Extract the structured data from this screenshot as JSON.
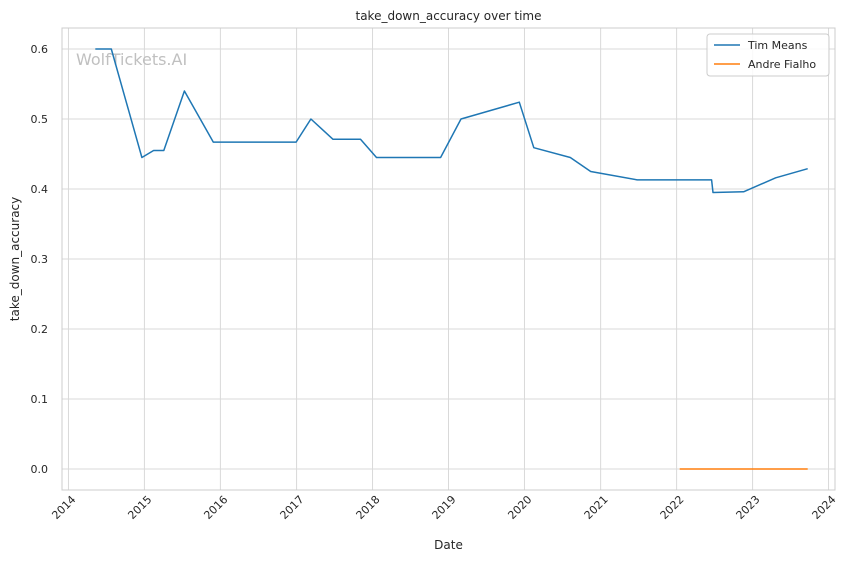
{
  "chart_data": {
    "type": "line",
    "title": "take_down_accuracy over time",
    "xlabel": "Date",
    "ylabel": "take_down_accuracy",
    "watermark": "WolfTickets.AI",
    "xlim": [
      "2013-12-01",
      "2024-02-01"
    ],
    "ylim": [
      -0.03,
      0.63
    ],
    "x_ticks": [
      "2014-01-01",
      "2015-01-01",
      "2016-01-01",
      "2017-01-01",
      "2018-01-01",
      "2019-01-01",
      "2020-01-01",
      "2021-01-01",
      "2022-01-01",
      "2023-01-01",
      "2024-01-01"
    ],
    "x_tick_labels": [
      "2014",
      "2015",
      "2016",
      "2017",
      "2018",
      "2019",
      "2020",
      "2021",
      "2022",
      "2023",
      "2024"
    ],
    "y_ticks": [
      0.0,
      0.1,
      0.2,
      0.3,
      0.4,
      0.5,
      0.6
    ],
    "y_tick_labels": [
      "0.0",
      "0.1",
      "0.2",
      "0.3",
      "0.4",
      "0.5",
      "0.6"
    ],
    "grid": true,
    "legend_position": "top-right",
    "series": [
      {
        "name": "Tim Means",
        "color": "#1f77b4",
        "points": [
          [
            "2014-05-10",
            0.6
          ],
          [
            "2014-07-26",
            0.6
          ],
          [
            "2014-12-20",
            0.445
          ],
          [
            "2015-02-14",
            0.455
          ],
          [
            "2015-04-04",
            0.455
          ],
          [
            "2015-07-12",
            0.54
          ],
          [
            "2015-11-28",
            0.467
          ],
          [
            "2016-04-16",
            0.467
          ],
          [
            "2016-08-20",
            0.467
          ],
          [
            "2016-12-30",
            0.467
          ],
          [
            "2017-03-11",
            0.5
          ],
          [
            "2017-06-25",
            0.471
          ],
          [
            "2017-11-04",
            0.471
          ],
          [
            "2018-01-20",
            0.445
          ],
          [
            "2018-06-09",
            0.445
          ],
          [
            "2018-11-24",
            0.445
          ],
          [
            "2019-03-02",
            0.5
          ],
          [
            "2019-12-07",
            0.524
          ],
          [
            "2020-02-15",
            0.459
          ],
          [
            "2020-08-08",
            0.445
          ],
          [
            "2020-11-14",
            0.425
          ],
          [
            "2021-06-26",
            0.413
          ],
          [
            "2021-12-11",
            0.413
          ],
          [
            "2022-06-18",
            0.413
          ],
          [
            "2022-06-25",
            0.395
          ],
          [
            "2022-11-19",
            0.396
          ],
          [
            "2023-04-22",
            0.416
          ],
          [
            "2023-09-23",
            0.429
          ]
        ]
      },
      {
        "name": "Andre Fialho",
        "color": "#ff7f0e",
        "points": [
          [
            "2022-01-16",
            0.0
          ],
          [
            "2022-06-11",
            0.0
          ],
          [
            "2022-11-19",
            0.0
          ],
          [
            "2023-04-15",
            0.0
          ],
          [
            "2023-09-23",
            0.0
          ]
        ]
      }
    ]
  }
}
